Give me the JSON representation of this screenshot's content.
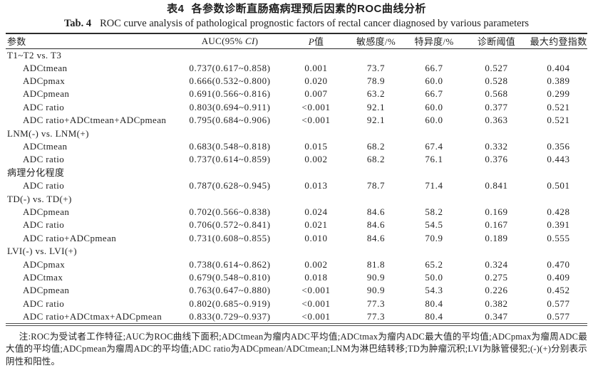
{
  "title_cn_label": "表4",
  "title_cn_text": "各参数诊断直肠癌病理预后因素的ROC曲线分析",
  "title_en_label": "Tab. 4",
  "title_en_text": "ROC curve analysis of pathological prognostic factors of rectal cancer diagnosed by various parameters",
  "table": {
    "headers": {
      "param": "参数",
      "auc_prefix": "AUC(95% ",
      "auc_italic": "CI",
      "auc_suffix": ")",
      "p_italic": "P",
      "p_suffix": "值",
      "sensitivity": "敏感度/%",
      "specificity": "特异度/%",
      "threshold": "诊断阈值",
      "youden": "最大约登指数"
    },
    "rows": [
      {
        "type": "section",
        "param": "T1~T2 vs. T3"
      },
      {
        "type": "data",
        "param": "ADCtmean",
        "auc": "0.737(0.617~0.858)",
        "p": "0.001",
        "sens": "73.7",
        "spec": "66.7",
        "thr": "0.527",
        "youden": "0.404"
      },
      {
        "type": "data",
        "param": "ADCpmax",
        "auc": "0.666(0.532~0.800)",
        "p": "0.020",
        "sens": "78.9",
        "spec": "60.0",
        "thr": "0.528",
        "youden": "0.389"
      },
      {
        "type": "data",
        "param": "ADCpmean",
        "auc": "0.691(0.566~0.816)",
        "p": "0.007",
        "sens": "63.2",
        "spec": "66.7",
        "thr": "0.568",
        "youden": "0.299"
      },
      {
        "type": "data",
        "param": "ADC ratio",
        "auc": "0.803(0.694~0.911)",
        "p": "<0.001",
        "sens": "92.1",
        "spec": "60.0",
        "thr": "0.377",
        "youden": "0.521"
      },
      {
        "type": "data",
        "param": "ADC ratio+ADCtmean+ADCpmean",
        "auc": "0.795(0.684~0.906)",
        "p": "<0.001",
        "sens": "92.1",
        "spec": "60.0",
        "thr": "0.363",
        "youden": "0.521"
      },
      {
        "type": "section",
        "param": "LNM(-) vs. LNM(+)"
      },
      {
        "type": "data",
        "param": "ADCtmean",
        "auc": "0.683(0.548~0.818)",
        "p": "0.015",
        "sens": "68.2",
        "spec": "67.4",
        "thr": "0.332",
        "youden": "0.356"
      },
      {
        "type": "data",
        "param": "ADC ratio",
        "auc": "0.737(0.614~0.859)",
        "p": "0.002",
        "sens": "68.2",
        "spec": "76.1",
        "thr": "0.376",
        "youden": "0.443"
      },
      {
        "type": "section",
        "param": "病理分化程度"
      },
      {
        "type": "data",
        "param": "ADC ratio",
        "auc": "0.787(0.628~0.945)",
        "p": "0.013",
        "sens": "78.7",
        "spec": "71.4",
        "thr": "0.841",
        "youden": "0.501"
      },
      {
        "type": "section",
        "param": "TD(-) vs. TD(+)"
      },
      {
        "type": "data",
        "param": "ADCpmean",
        "auc": "0.702(0.566~0.838)",
        "p": "0.024",
        "sens": "84.6",
        "spec": "58.2",
        "thr": "0.169",
        "youden": "0.428"
      },
      {
        "type": "data",
        "param": "ADC ratio",
        "auc": "0.706(0.572~0.841)",
        "p": "0.021",
        "sens": "84.6",
        "spec": "54.5",
        "thr": "0.167",
        "youden": "0.391"
      },
      {
        "type": "data",
        "param": "ADC ratio+ADCpmean",
        "auc": "0.731(0.608~0.855)",
        "p": "0.010",
        "sens": "84.6",
        "spec": "70.9",
        "thr": "0.189",
        "youden": "0.555"
      },
      {
        "type": "section",
        "param": "LVI(-) vs. LVI(+)"
      },
      {
        "type": "data",
        "param": "ADCpmax",
        "auc": "0.738(0.614~0.862)",
        "p": "0.002",
        "sens": "81.8",
        "spec": "65.2",
        "thr": "0.324",
        "youden": "0.470"
      },
      {
        "type": "data",
        "param": "ADCtmax",
        "auc": "0.679(0.548~0.810)",
        "p": "0.018",
        "sens": "90.9",
        "spec": "50.0",
        "thr": "0.275",
        "youden": "0.409"
      },
      {
        "type": "data",
        "param": "ADCpmean",
        "auc": "0.763(0.647~0.880)",
        "p": "<0.001",
        "sens": "90.9",
        "spec": "54.3",
        "thr": "0.226",
        "youden": "0.452"
      },
      {
        "type": "data",
        "param": "ADC ratio",
        "auc": "0.802(0.685~0.919)",
        "p": "<0.001",
        "sens": "77.3",
        "spec": "80.4",
        "thr": "0.382",
        "youden": "0.577"
      },
      {
        "type": "data",
        "param": "ADC ratio+ADCtmax+ADCpmean",
        "auc": "0.833(0.729~0.937)",
        "p": "<0.001",
        "sens": "77.3",
        "spec": "80.4",
        "thr": "0.347",
        "youden": "0.577"
      }
    ]
  },
  "footnote": "注:ROC为受试者工作特征;AUC为ROC曲线下面积;ADCtmean为瘤内ADC平均值;ADCtmax为瘤内ADC最大值的平均值;ADCpmax为瘤周ADC最大值的平均值;ADCpmean为瘤周ADC的平均值;ADC ratio为ADCpmean/ADCtmean;LNM为淋巴结转移;TD为肿瘤沉积;LVI为脉管侵犯;(-)(+)分别表示阴性和阳性。"
}
